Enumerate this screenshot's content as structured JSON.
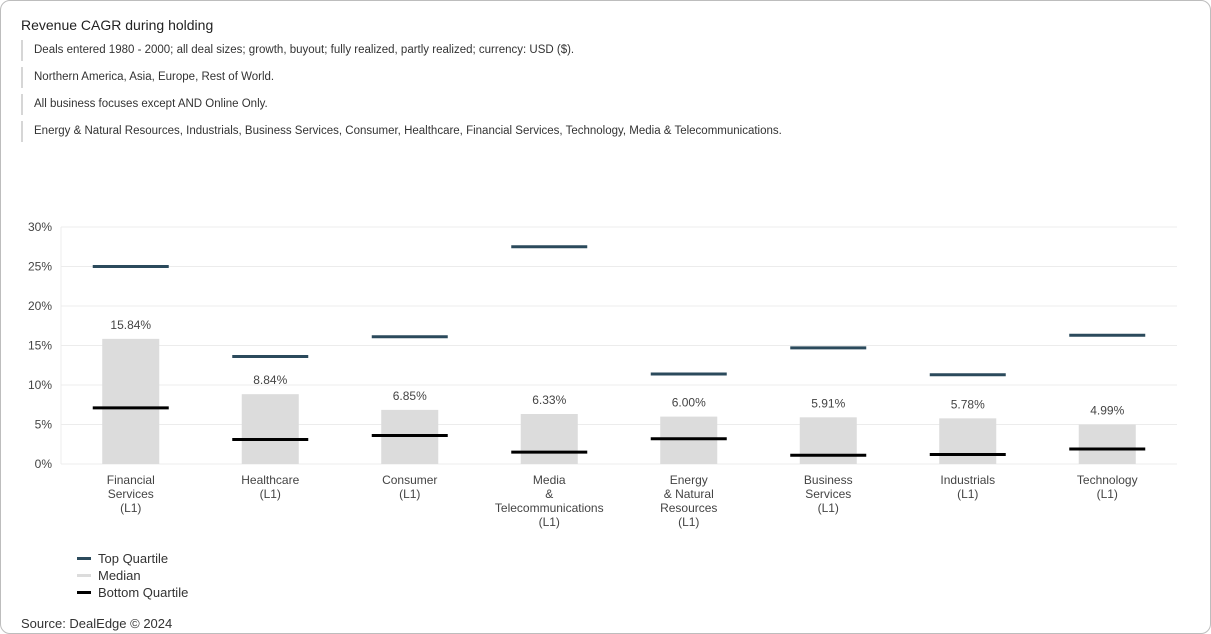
{
  "title": "Revenue CAGR during holding",
  "filters": [
    "Deals entered 1980 - 2000; all deal sizes; growth, buyout; fully realized, partly realized; currency: USD ($).",
    "Northern America, Asia, Europe, Rest of World.",
    "All business focuses except AND Online Only.",
    "Energy & Natural Resources, Industrials, Business Services, Consumer, Healthcare, Financial Services, Technology, Media & Telecommunications."
  ],
  "legend": {
    "top": "Top Quartile",
    "median": "Median",
    "bottom": "Bottom Quartile"
  },
  "source": "Source: DealEdge © 2024",
  "colors": {
    "top": "#2b4a5c",
    "median": "#dcdcdc",
    "bottom": "#000000",
    "grid": "#ececec",
    "text": "#444444"
  },
  "chart_data": {
    "type": "bar",
    "title": "Revenue CAGR during holding",
    "ylim": [
      0,
      30
    ],
    "yticks": [
      0,
      5,
      10,
      15,
      20,
      25,
      30
    ],
    "ytick_labels": [
      "0%",
      "5%",
      "10%",
      "15%",
      "20%",
      "25%",
      "30%"
    ],
    "categories": [
      [
        "Financial",
        "Services",
        "(L1)"
      ],
      [
        "Healthcare",
        "(L1)"
      ],
      [
        "Consumer",
        "(L1)"
      ],
      [
        "Media",
        "&",
        "Telecommunications",
        "(L1)"
      ],
      [
        "Energy",
        "& Natural",
        "Resources",
        "(L1)"
      ],
      [
        "Business",
        "Services",
        "(L1)"
      ],
      [
        "Industrials",
        "(L1)"
      ],
      [
        "Technology",
        "(L1)"
      ]
    ],
    "series": [
      {
        "name": "Top Quartile",
        "values": [
          25.0,
          13.6,
          16.1,
          27.5,
          11.4,
          14.7,
          11.3,
          16.3
        ]
      },
      {
        "name": "Median",
        "values": [
          15.84,
          8.84,
          6.85,
          6.33,
          6.0,
          5.91,
          5.78,
          4.99
        ]
      },
      {
        "name": "Bottom Quartile",
        "values": [
          7.1,
          3.1,
          3.6,
          1.5,
          3.2,
          1.1,
          1.2,
          1.9
        ]
      }
    ],
    "median_labels": [
      "15.84%",
      "8.84%",
      "6.85%",
      "6.33%",
      "6.00%",
      "5.91%",
      "5.78%",
      "4.99%"
    ],
    "legend_position": "bottom-left"
  }
}
